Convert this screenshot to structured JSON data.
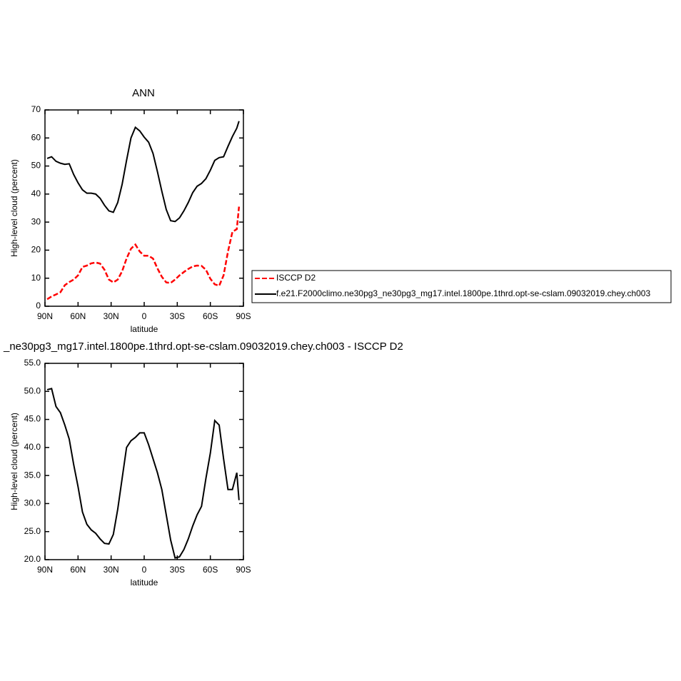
{
  "chart_data": [
    {
      "type": "line",
      "title": "ANN",
      "x_label": "latitude",
      "y_label": "High-level cloud (percent)",
      "x": [
        88,
        84,
        80,
        76,
        72,
        68,
        64,
        60,
        56,
        52,
        48,
        44,
        40,
        36,
        32,
        28,
        24,
        20,
        16,
        12,
        8,
        4,
        0,
        -4,
        -8,
        -12,
        -16,
        -20,
        -24,
        -28,
        -32,
        -36,
        -40,
        -44,
        -48,
        -52,
        -56,
        -60,
        -64,
        -68,
        -72,
        -76,
        -80,
        -84,
        -86
      ],
      "series": [
        {
          "name": "ISCCP D2",
          "color": "#ff0000",
          "linestyle": "dashed",
          "values": [
            2.5,
            3.5,
            4.2,
            5,
            7.5,
            8.6,
            9.5,
            11,
            14,
            14.5,
            15.3,
            15.6,
            15.2,
            13,
            9.5,
            8.5,
            9.5,
            12.5,
            17,
            20.5,
            22,
            19.5,
            18,
            18,
            17,
            13.5,
            10.5,
            8.5,
            8.3,
            9.5,
            11,
            12.2,
            13.3,
            14.2,
            14.5,
            14.4,
            13,
            9.8,
            7.8,
            7.3,
            11,
            19.5,
            26.5,
            27.5,
            35.5
          ]
        },
        {
          "name": "f.e21.F2000climo.ne30pg3_ne30pg3_mg17.intel.1800pe.1thrd.opt-se-cslam.09032019.chey.ch003",
          "color": "#000000",
          "linestyle": "solid",
          "values": [
            52.7,
            53.3,
            51.7,
            51,
            50.6,
            50.8,
            47,
            44,
            41.5,
            40.3,
            40.3,
            40,
            38.5,
            36,
            34,
            33.5,
            37,
            43.5,
            52,
            60,
            63.8,
            62.5,
            60.3,
            58.5,
            54.5,
            48,
            41,
            34.5,
            30.5,
            30.2,
            31.5,
            34,
            37,
            40.5,
            42.8,
            43.8,
            45.5,
            48.5,
            52,
            53,
            53.3,
            57,
            60.5,
            63.5,
            66
          ]
        }
      ],
      "xlim": [
        90,
        -90
      ],
      "xticks": [
        {
          "value": 90,
          "label": "90N"
        },
        {
          "value": 60,
          "label": "60N"
        },
        {
          "value": 30,
          "label": "30N"
        },
        0,
        {
          "value": -30,
          "label": "30S"
        },
        {
          "value": -60,
          "label": "60S"
        },
        {
          "value": -90,
          "label": "90S"
        }
      ],
      "ylim": [
        0,
        70
      ],
      "yticks": [
        0,
        10,
        20,
        30,
        40,
        50,
        60,
        70
      ],
      "legend": "right"
    },
    {
      "type": "line",
      "title": "_ne30pg3_mg17.intel.1800pe.1thrd.opt-se-cslam.09032019.chey.ch003 - ISCCP D2",
      "x_label": "latitude",
      "y_label": "High-level cloud (percent)",
      "x": [
        88,
        84,
        80,
        76,
        72,
        68,
        64,
        60,
        56,
        52,
        48,
        44,
        40,
        36,
        32,
        28,
        24,
        20,
        16,
        12,
        8,
        4,
        0,
        -4,
        -8,
        -12,
        -16,
        -20,
        -24,
        -28,
        -32,
        -36,
        -40,
        -44,
        -48,
        -52,
        -56,
        -60,
        -64,
        -68,
        -72,
        -76,
        -80,
        -84,
        -86
      ],
      "series": [
        {
          "color": "#000000",
          "linestyle": "solid",
          "values": [
            50.3,
            50.5,
            47.3,
            46.2,
            44,
            41.5,
            37,
            33,
            28.5,
            26.3,
            25.3,
            24.7,
            23.7,
            22.9,
            22.8,
            24.5,
            29,
            34.5,
            40,
            41.2,
            41.8,
            42.6,
            42.6,
            40.5,
            38,
            35.5,
            32.5,
            28,
            23.5,
            20.3,
            20.5,
            21.8,
            23.7,
            26,
            28,
            29.5,
            34.5,
            39,
            44.8,
            44,
            38,
            32.5,
            32.5,
            35.5,
            30.6
          ]
        }
      ],
      "xlim": [
        90,
        -90
      ],
      "xticks": [
        {
          "value": 90,
          "label": "90N"
        },
        {
          "value": 60,
          "label": "60N"
        },
        {
          "value": 30,
          "label": "30N"
        },
        0,
        {
          "value": -30,
          "label": "30S"
        },
        {
          "value": -60,
          "label": "60S"
        },
        {
          "value": -90,
          "label": "90S"
        }
      ],
      "ylim": [
        20,
        55
      ],
      "yticks": [
        {
          "value": 20,
          "label": "20.0"
        },
        {
          "value": 25,
          "label": "25.0"
        },
        {
          "value": 30,
          "label": "30.0"
        },
        {
          "value": 35,
          "label": "35.0"
        },
        {
          "value": 40,
          "label": "40.0"
        },
        {
          "value": 45,
          "label": "45.0"
        },
        {
          "value": 50,
          "label": "50.0"
        },
        {
          "value": 55,
          "label": "55.0"
        }
      ]
    }
  ]
}
